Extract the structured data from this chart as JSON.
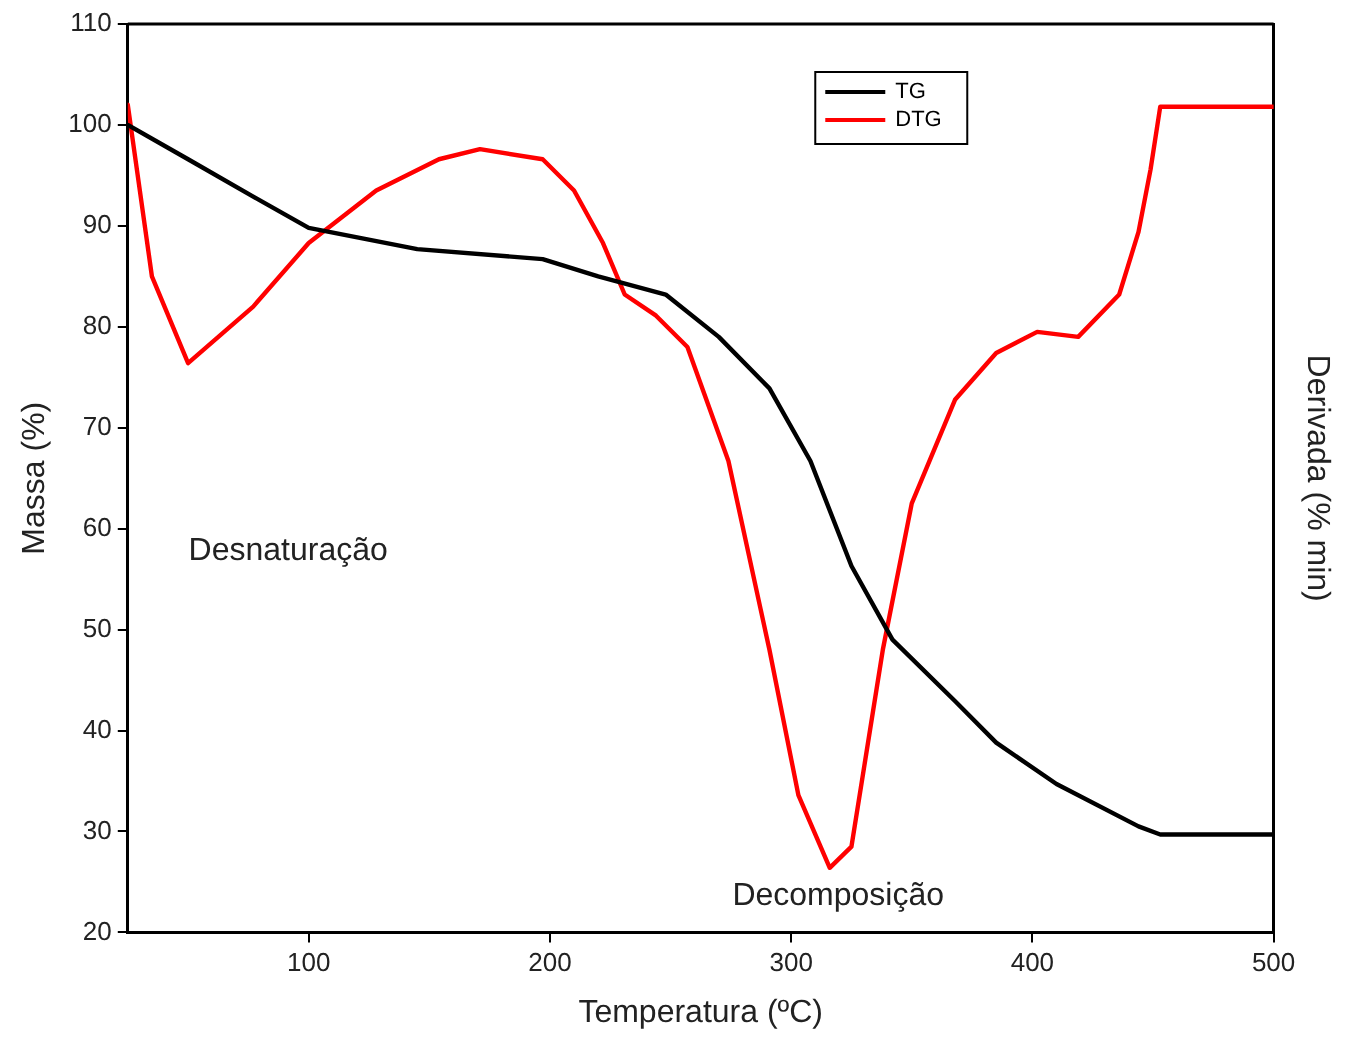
{
  "chart_data": {
    "type": "line",
    "xlabel": "Temperatura (ºC)",
    "ylabel": "Massa (%)",
    "y2label": "Derivada (% min)",
    "xlim": [
      25,
      500
    ],
    "xticks": [
      100,
      200,
      300,
      400,
      500
    ],
    "ylim": [
      20,
      110
    ],
    "yticks": [
      20,
      30,
      40,
      50,
      60,
      70,
      80,
      90,
      100,
      110
    ],
    "grid": false,
    "legend": "top right",
    "marker": "none",
    "line_style": "solid",
    "series": [
      {
        "name": "TG",
        "color": "#000000",
        "x": [
          25,
          50,
          77,
          100,
          145,
          197,
          220,
          248,
          270,
          291,
          308,
          325,
          342,
          368,
          385,
          410,
          444,
          453,
          500
        ],
        "values": [
          100,
          96.6,
          92.9,
          89.8,
          87.7,
          86.7,
          85,
          83.2,
          79,
          73.9,
          66.7,
          56.3,
          49,
          42.9,
          38.8,
          34.7,
          30.5,
          29.7,
          29.7
        ]
      },
      {
        "name": "DTG",
        "color": "#ff0000",
        "x": [
          25,
          35,
          50,
          77,
          100,
          128,
          154,
          171,
          197,
          210,
          222,
          231,
          244,
          257,
          274,
          291,
          303,
          316,
          325,
          338,
          350,
          368,
          385,
          402,
          419,
          436,
          444,
          449,
          453,
          500
        ],
        "values": [
          102,
          85,
          76.4,
          82,
          88.3,
          93.5,
          96.6,
          97.6,
          96.6,
          93.5,
          88.3,
          83.2,
          81.1,
          78,
          66.7,
          48,
          33.6,
          26.4,
          28.5,
          48,
          62.5,
          72.8,
          77.4,
          79.5,
          79,
          83.2,
          89.4,
          95.6,
          101.8,
          101.8
        ]
      }
    ],
    "annotations": [
      "Desnaturação",
      "Decomposição"
    ]
  }
}
